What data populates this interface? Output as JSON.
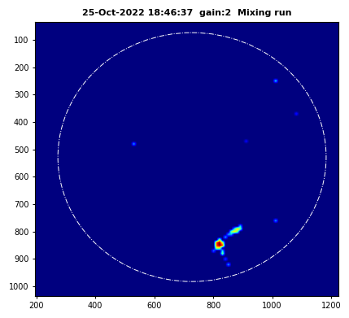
{
  "chart_data": {
    "type": "heatmap",
    "title": "25-Oct-2022 18:46:37  gain:2  Mixing run",
    "xlim": [
      195,
      1225
    ],
    "ylim": [
      1035,
      35
    ],
    "xticks": [
      200,
      400,
      600,
      800,
      1000,
      1200
    ],
    "yticks": [
      100,
      200,
      300,
      400,
      500,
      600,
      700,
      800,
      900,
      1000
    ],
    "zlim": [
      0,
      1
    ],
    "circle": {
      "center": [
        728,
        528
      ],
      "radius": 455
    },
    "cells": [
      {
        "x": 820,
        "y": 840,
        "value": 1.0
      },
      {
        "x": 820,
        "y": 850,
        "value": 1.0
      },
      {
        "x": 810,
        "y": 840,
        "value": 0.85
      },
      {
        "x": 810,
        "y": 850,
        "value": 0.85
      },
      {
        "x": 830,
        "y": 850,
        "value": 0.85
      },
      {
        "x": 820,
        "y": 830,
        "value": 0.6
      },
      {
        "x": 820,
        "y": 860,
        "value": 0.6
      },
      {
        "x": 830,
        "y": 840,
        "value": 0.6
      },
      {
        "x": 810,
        "y": 860,
        "value": 0.6
      },
      {
        "x": 880,
        "y": 790,
        "value": 0.7
      },
      {
        "x": 870,
        "y": 800,
        "value": 0.7
      },
      {
        "x": 890,
        "y": 790,
        "value": 0.5
      },
      {
        "x": 880,
        "y": 800,
        "value": 0.5
      },
      {
        "x": 860,
        "y": 800,
        "value": 0.5
      },
      {
        "x": 870,
        "y": 790,
        "value": 0.35
      },
      {
        "x": 890,
        "y": 780,
        "value": 0.35
      },
      {
        "x": 840,
        "y": 820,
        "value": 0.3
      },
      {
        "x": 850,
        "y": 810,
        "value": 0.3
      },
      {
        "x": 860,
        "y": 810,
        "value": 0.3
      },
      {
        "x": 830,
        "y": 880,
        "value": 0.5
      },
      {
        "x": 830,
        "y": 870,
        "value": 0.35
      },
      {
        "x": 840,
        "y": 900,
        "value": 0.2
      },
      {
        "x": 850,
        "y": 920,
        "value": 0.3
      },
      {
        "x": 800,
        "y": 870,
        "value": 0.25
      },
      {
        "x": 1010,
        "y": 245,
        "value": 0.35
      },
      {
        "x": 530,
        "y": 480,
        "value": 0.3
      },
      {
        "x": 1010,
        "y": 760,
        "value": 0.3
      },
      {
        "x": 1080,
        "y": 370,
        "value": 0.15
      },
      {
        "x": 910,
        "y": 470,
        "value": 0.12
      }
    ]
  }
}
